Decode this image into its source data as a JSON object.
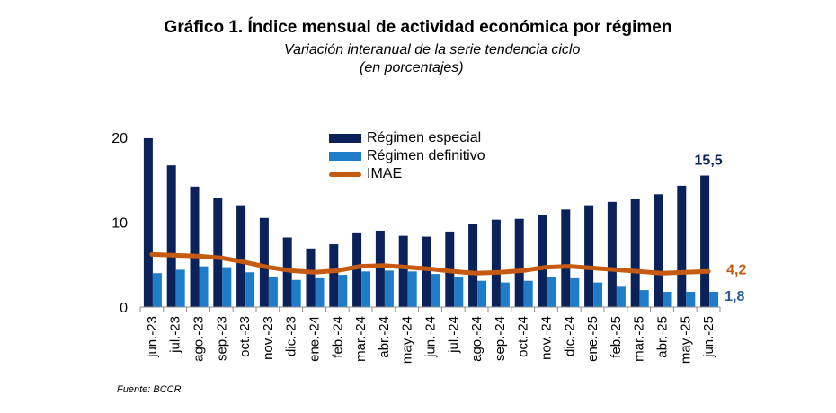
{
  "header": {
    "title": "Gráfico 1. Índice mensual de actividad económica por régimen",
    "subtitle_line1": "Variación interanual de la serie tendencia ciclo",
    "subtitle_line2": "(en porcentajes)"
  },
  "footer": {
    "source": "Fuente:  BCCR."
  },
  "colors": {
    "especial": "#0a2259",
    "definitivo": "#1f7cc8",
    "imae": "#c55a11"
  },
  "chart_data": {
    "type": "bar",
    "categories": [
      "jun.-23",
      "jul.-23",
      "ago.-23",
      "sep.-23",
      "oct.-23",
      "nov.-23",
      "dic.-23",
      "ene.-24",
      "feb.-24",
      "mar.-24",
      "abr.-24",
      "may.-24",
      "jun.-24",
      "jul.-24",
      "ago.-24",
      "sep.-24",
      "oct.-24",
      "nov.-24",
      "dic.-24",
      "ene.-25",
      "feb.-25",
      "mar.-25",
      "abr.-25",
      "may.-25",
      "jun.-25"
    ],
    "series": [
      {
        "name": "Régimen especial",
        "type": "bar",
        "values": [
          19.9,
          16.7,
          14.2,
          12.9,
          12.0,
          10.5,
          8.2,
          6.9,
          7.4,
          8.8,
          9.0,
          8.4,
          8.3,
          8.9,
          9.8,
          10.3,
          10.4,
          10.9,
          11.5,
          12.0,
          12.4,
          12.7,
          13.3,
          14.3,
          15.5
        ]
      },
      {
        "name": "Régimen definitivo",
        "type": "bar",
        "values": [
          4.0,
          4.4,
          4.8,
          4.7,
          4.1,
          3.5,
          3.2,
          3.4,
          3.8,
          4.2,
          4.3,
          4.2,
          3.9,
          3.5,
          3.1,
          2.9,
          3.1,
          3.5,
          3.4,
          2.9,
          2.4,
          2.0,
          1.8,
          1.8,
          1.8
        ]
      },
      {
        "name": "IMAE",
        "type": "line",
        "values": [
          6.2,
          6.1,
          6.0,
          5.8,
          5.3,
          4.7,
          4.3,
          4.1,
          4.3,
          4.8,
          4.9,
          4.7,
          4.5,
          4.2,
          4.0,
          4.1,
          4.3,
          4.7,
          4.8,
          4.6,
          4.4,
          4.2,
          4.0,
          4.1,
          4.2
        ]
      }
    ],
    "yticks": [
      0,
      10,
      20
    ],
    "ylim": [
      0,
      20
    ],
    "data_labels": {
      "especial_last": "15,5",
      "imae_last": "4,2",
      "definitivo_last": "1,8"
    },
    "legend_position": "top-center",
    "grid": false
  }
}
